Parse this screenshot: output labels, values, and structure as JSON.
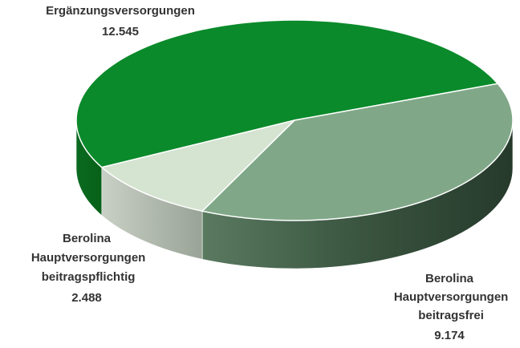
{
  "chart_data": {
    "type": "pie",
    "categories": [
      "Ergänzungsversorgungen",
      "Berolina Hauptversorgungen beitragsfrei",
      "Berolina Hauptversorgungen beitragspflichtig"
    ],
    "values": [
      12545,
      9174,
      2488
    ],
    "value_labels": [
      "12.545",
      "9.174",
      "2.488"
    ],
    "colors": [
      "#0b8a2b",
      "#80a888",
      "#d5e3d1"
    ]
  }
}
